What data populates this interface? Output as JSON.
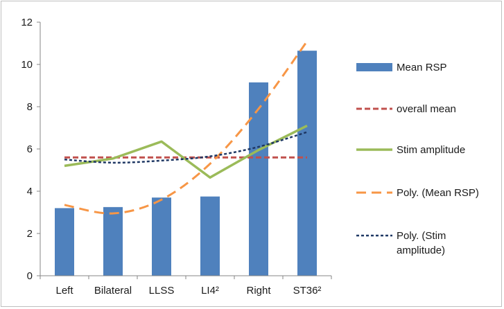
{
  "chart_data": {
    "type": "bar",
    "categories": [
      "Left",
      "Bilateral",
      "LLSS",
      "LI4²",
      "Right",
      "ST36²"
    ],
    "ylim": [
      0,
      12
    ],
    "yticks": [
      0,
      2,
      4,
      6,
      8,
      10,
      12
    ],
    "grid": false,
    "legend_position": "right",
    "series": [
      {
        "name": "Mean RSP",
        "kind": "bar",
        "color": "#4f81bd",
        "values": [
          3.2,
          3.25,
          3.7,
          3.75,
          9.15,
          10.65
        ]
      },
      {
        "name": "overall mean",
        "kind": "line",
        "style": "dashed",
        "color": "#c0504d",
        "values": [
          5.6,
          5.6,
          5.6,
          5.6,
          5.6,
          5.6
        ]
      },
      {
        "name": "Stim amplitude",
        "kind": "line",
        "style": "solid",
        "color": "#9bbb59",
        "values": [
          5.2,
          5.55,
          6.35,
          4.65,
          5.95,
          7.1
        ]
      },
      {
        "name": "Poly. (Mean RSP)",
        "kind": "trend",
        "style": "long-dash",
        "color": "#f79646",
        "values": [
          3.35,
          2.95,
          3.6,
          5.3,
          7.9,
          11.1
        ]
      },
      {
        "name": "Poly. (Stim amplitude)",
        "kind": "trend",
        "style": "short-dash",
        "color": "#1f3864",
        "values": [
          5.5,
          5.35,
          5.45,
          5.65,
          6.1,
          6.8
        ]
      }
    ]
  }
}
